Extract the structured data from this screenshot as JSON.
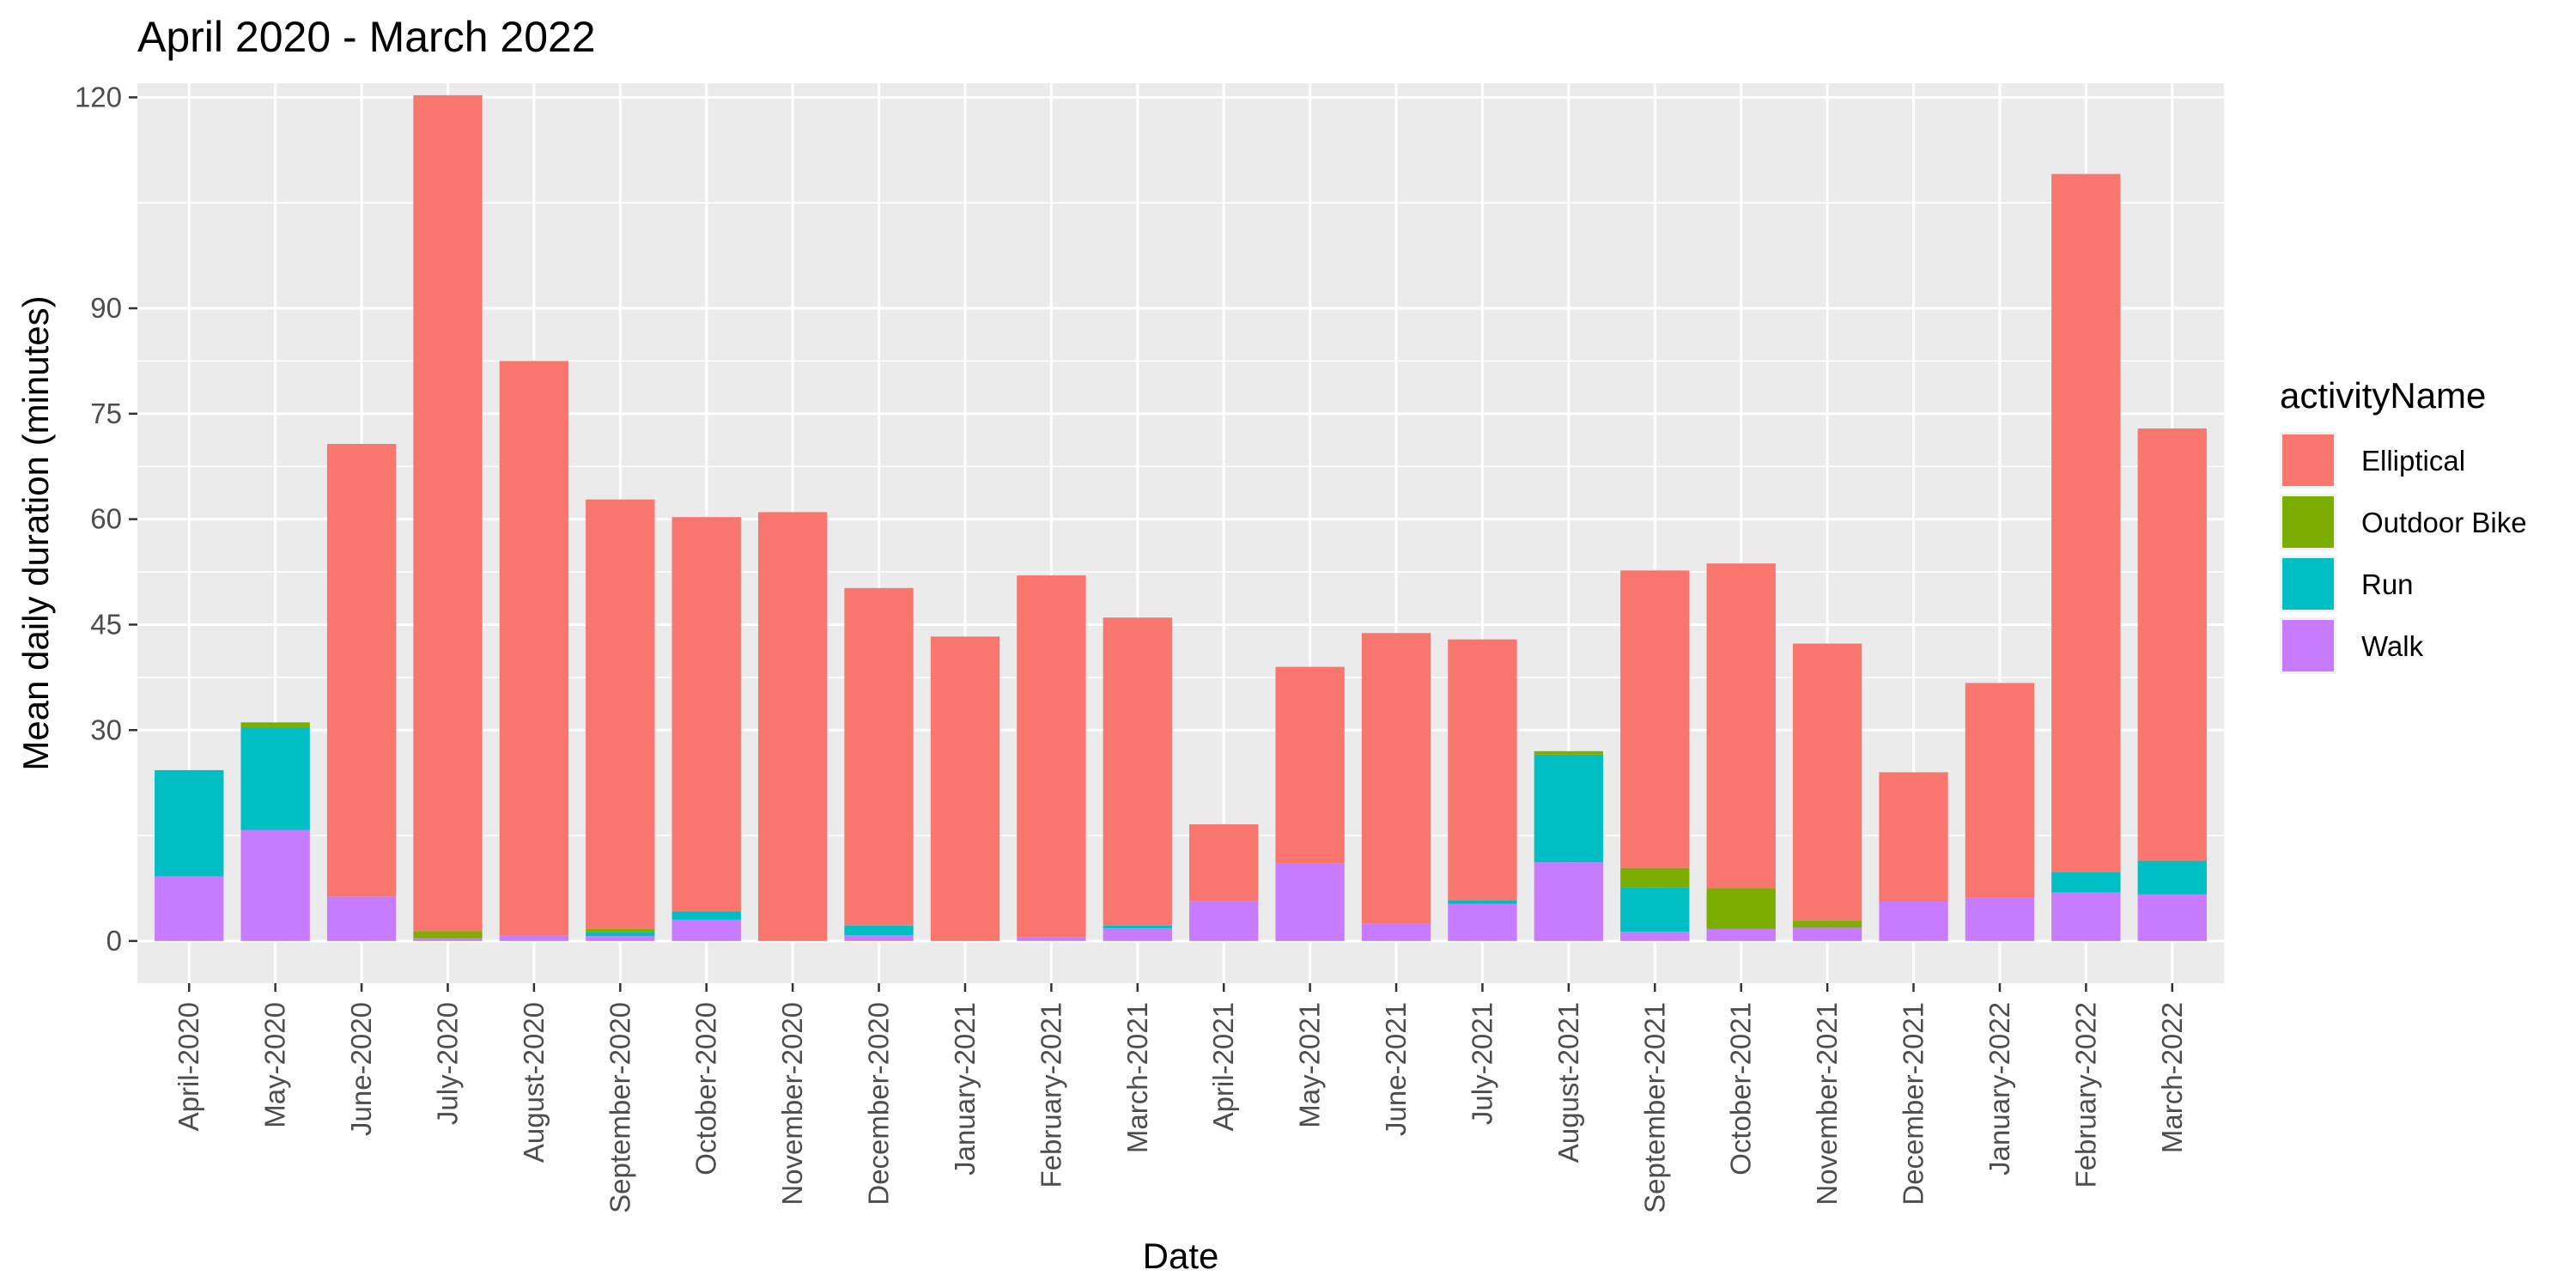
{
  "chart_data": {
    "type": "bar",
    "stacked": true,
    "title": "April 2020 - March 2022",
    "xlabel": "Date",
    "ylabel": "Mean daily duration (minutes)",
    "ylim": [
      -6,
      122
    ],
    "yticks": [
      0,
      30,
      45,
      60,
      75,
      90,
      120
    ],
    "grid": true,
    "legend": {
      "title": "activityName",
      "position": "right"
    },
    "categories": [
      "April-2020",
      "May-2020",
      "June-2020",
      "July-2020",
      "August-2020",
      "September-2020",
      "October-2020",
      "November-2020",
      "December-2020",
      "January-2021",
      "February-2021",
      "March-2021",
      "April-2021",
      "May-2021",
      "June-2021",
      "July-2021",
      "August-2021",
      "September-2021",
      "October-2021",
      "November-2021",
      "December-2021",
      "January-2022",
      "February-2022",
      "March-2022"
    ],
    "series": [
      {
        "name": "Walk",
        "color": "#C77CFF",
        "values": [
          9.2,
          15.8,
          6.3,
          0.4,
          0.8,
          0.7,
          3.0,
          0,
          0.8,
          0,
          0.5,
          1.8,
          5.7,
          11.0,
          2.5,
          5.3,
          11.2,
          1.3,
          1.7,
          1.9,
          5.6,
          6.2,
          6.9,
          6.6
        ]
      },
      {
        "name": "Run",
        "color": "#00BFC4",
        "values": [
          15.1,
          14.6,
          0,
          0,
          0,
          0.6,
          1.2,
          0,
          1.4,
          0,
          0,
          0.4,
          0,
          0,
          0,
          0.5,
          15.3,
          6.3,
          0,
          0,
          0,
          0,
          2.9,
          4.8
        ]
      },
      {
        "name": "Outdoor Bike",
        "color": "#7CAE00",
        "values": [
          0,
          0.7,
          0,
          1.0,
          0,
          0.4,
          0,
          0,
          0,
          0,
          0,
          0,
          0,
          0,
          0,
          0,
          0.5,
          2.8,
          5.8,
          1.0,
          0,
          0,
          0,
          0
        ]
      },
      {
        "name": "Elliptical",
        "color": "#F8766D",
        "values": [
          0,
          0,
          64.4,
          118.9,
          81.7,
          61.1,
          56.1,
          61.0,
          48.0,
          43.3,
          51.5,
          43.8,
          10.9,
          28.0,
          41.3,
          37.1,
          0,
          42.3,
          46.2,
          39.4,
          18.4,
          30.5,
          99.3,
          61.5
        ]
      }
    ],
    "legend_order": [
      "Elliptical",
      "Outdoor Bike",
      "Run",
      "Walk"
    ]
  }
}
